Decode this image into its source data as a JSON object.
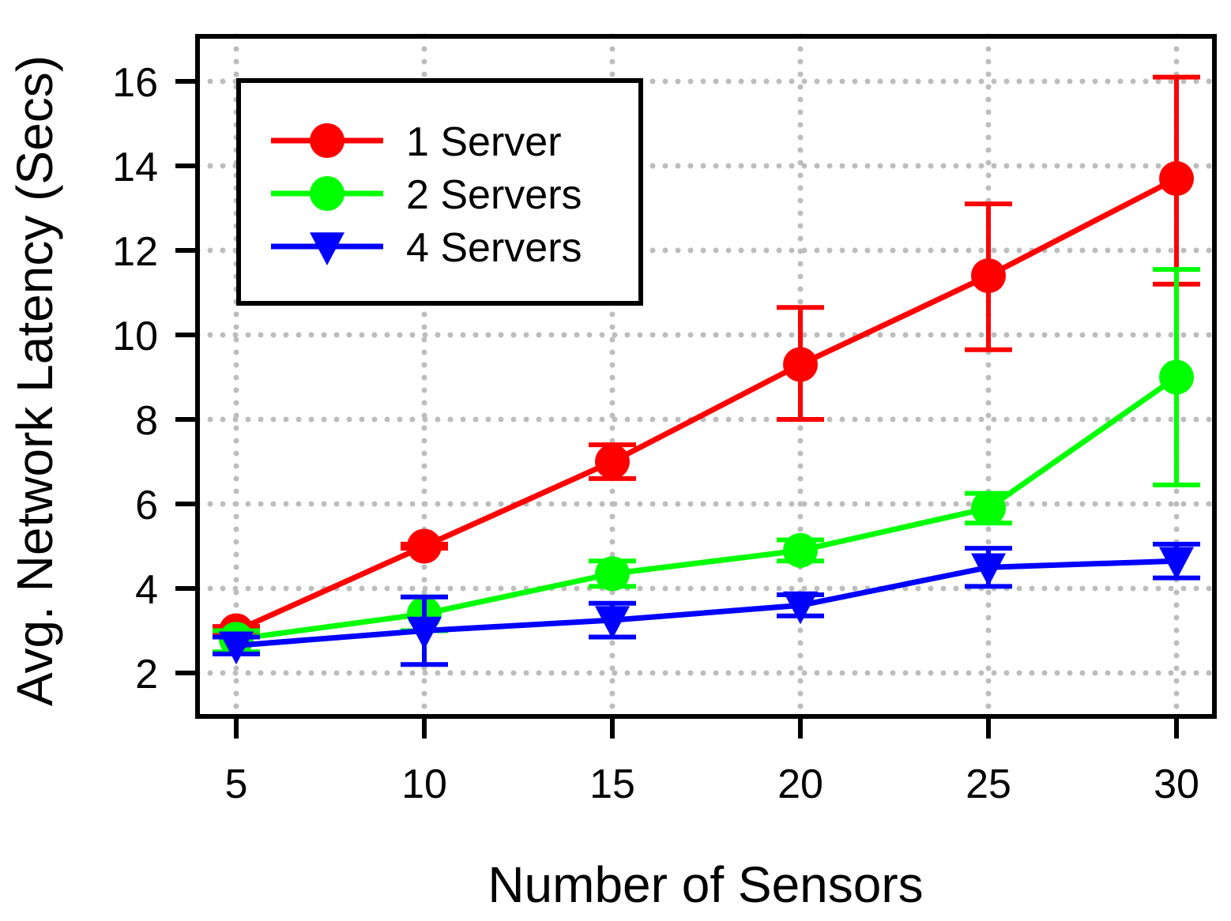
{
  "chart_data": {
    "type": "line",
    "title": "",
    "xlabel": "Number of Sensors",
    "ylabel": "Avg. Network Latency (Secs)",
    "x": [
      5,
      10,
      15,
      20,
      25,
      30
    ],
    "x_ticks": [
      5,
      10,
      15,
      20,
      25,
      30
    ],
    "y_ticks": [
      2,
      4,
      6,
      8,
      10,
      12,
      14,
      16
    ],
    "xlim": [
      4,
      31
    ],
    "ylim": [
      1,
      17.1
    ],
    "grid": true,
    "legend_position": "top-left",
    "series": [
      {
        "name": "1 Server",
        "color": "#ff0000",
        "marker": "circle",
        "values": [
          3.0,
          5.0,
          7.0,
          9.3,
          11.4,
          13.7
        ],
        "error_low": [
          2.9,
          4.95,
          6.6,
          8.0,
          9.65,
          11.2
        ],
        "error_high": [
          3.1,
          5.05,
          7.4,
          10.65,
          13.1,
          16.1
        ]
      },
      {
        "name": "2 Servers",
        "color": "#00ff00",
        "marker": "circle",
        "values": [
          2.8,
          3.4,
          4.35,
          4.9,
          5.9,
          9.0
        ],
        "error_low": [
          2.5,
          3.0,
          4.05,
          4.65,
          5.55,
          6.45
        ],
        "error_high": [
          3.0,
          3.8,
          4.65,
          5.15,
          6.25,
          11.55
        ]
      },
      {
        "name": "4 Servers",
        "color": "#0000ff",
        "marker": "triangle-down",
        "values": [
          2.65,
          3.0,
          3.25,
          3.6,
          4.5,
          4.65
        ],
        "error_low": [
          2.45,
          2.2,
          2.85,
          3.35,
          4.05,
          4.25
        ],
        "error_high": [
          2.85,
          3.8,
          3.65,
          3.85,
          4.95,
          5.05
        ]
      }
    ]
  }
}
